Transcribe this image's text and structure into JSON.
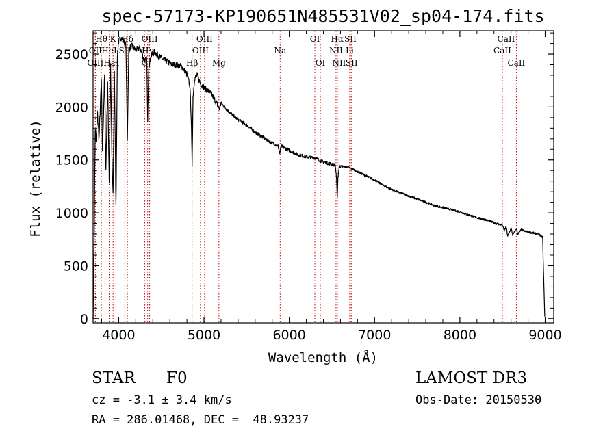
{
  "chart_data": {
    "type": "line",
    "title": "spec-57173-KP190651N485531V02_sp04-174.fits",
    "xlabel": "Wavelength (Å)",
    "ylabel": "Flux (relative)",
    "xlim": [
      3700,
      9100
    ],
    "ylim": [
      -40,
      2720
    ],
    "xticks": [
      4000,
      5000,
      6000,
      7000,
      8000,
      9000
    ],
    "xtick_labels": [
      "4000",
      "5000",
      "6000",
      "7000",
      "8000",
      "9000"
    ],
    "yticks": [
      0,
      500,
      1000,
      1500,
      2000,
      2500
    ],
    "ytick_labels": [
      "0",
      "500",
      "1000",
      "1500",
      "2000",
      "2500"
    ],
    "series": [
      {
        "name": "spectrum",
        "x": [
          3700,
          3712,
          3725,
          3738,
          3750,
          3770,
          3797,
          3810,
          3835,
          3850,
          3870,
          3889,
          3905,
          3920,
          3934,
          3950,
          3968,
          3985,
          4000,
          4030,
          4060,
          4085,
          4102,
          4118,
          4150,
          4200,
          4250,
          4300,
          4330,
          4340,
          4352,
          4380,
          4420,
          4470,
          4520,
          4570,
          4620,
          4680,
          4740,
          4800,
          4835,
          4850,
          4861,
          4872,
          4890,
          4920,
          4960,
          5020,
          5080,
          5140,
          5180,
          5200,
          5240,
          5300,
          5400,
          5500,
          5600,
          5700,
          5800,
          5870,
          5889,
          5896,
          5910,
          6000,
          6100,
          6200,
          6300,
          6400,
          6500,
          6540,
          6555,
          6563,
          6570,
          6585,
          6620,
          6700,
          6800,
          6900,
          7000,
          7100,
          7200,
          7300,
          7400,
          7500,
          7600,
          7700,
          7800,
          7900,
          8000,
          8100,
          8200,
          8300,
          8400,
          8498,
          8520,
          8542,
          8560,
          8600,
          8620,
          8662,
          8680,
          8720,
          8760,
          8800,
          8860,
          8920,
          8970,
          8985,
          8995
        ],
        "y": [
          0,
          700,
          1800,
          1650,
          1950,
          1700,
          2250,
          1600,
          2300,
          1400,
          2250,
          1300,
          2400,
          1550,
          1150,
          2350,
          1050,
          2500,
          2620,
          2660,
          2620,
          2580,
          1700,
          2540,
          2580,
          2540,
          2560,
          2440,
          2450,
          1850,
          2380,
          2480,
          2520,
          2480,
          2450,
          2430,
          2400,
          2400,
          2380,
          2310,
          2200,
          1900,
          1450,
          2100,
          2270,
          2300,
          2220,
          2170,
          2130,
          2050,
          1980,
          2040,
          2000,
          1950,
          1880,
          1830,
          1760,
          1710,
          1660,
          1630,
          1560,
          1600,
          1630,
          1590,
          1550,
          1530,
          1520,
          1480,
          1460,
          1450,
          1300,
          1150,
          1330,
          1440,
          1440,
          1430,
          1390,
          1350,
          1310,
          1260,
          1220,
          1190,
          1160,
          1130,
          1100,
          1070,
          1050,
          1030,
          1010,
          980,
          955,
          935,
          905,
          885,
          830,
          870,
          780,
          855,
          790,
          850,
          800,
          840,
          825,
          820,
          810,
          800,
          770,
          300,
          20
        ]
      }
    ],
    "lines": [
      {
        "label": "Hθ",
        "x": 3797,
        "row": 1
      },
      {
        "label": "OII",
        "x": 3727,
        "row": 2
      },
      {
        "label": "OIII",
        "x": 3727,
        "row": 3
      },
      {
        "label": "Hε",
        "x": 3889,
        "row": 3
      },
      {
        "label": "HeI",
        "x": 3889,
        "row": 2
      },
      {
        "label": "K",
        "x": 3934,
        "row": 1
      },
      {
        "label": "H",
        "x": 3968,
        "row": 3
      },
      {
        "label": "Hδ",
        "x": 4102,
        "row": 1
      },
      {
        "label": "SII",
        "x": 4072,
        "row": 2
      },
      {
        "label": "OIII",
        "x": 4363,
        "row": 1
      },
      {
        "label": "Hγ",
        "x": 4340,
        "row": 2
      },
      {
        "label": "G",
        "x": 4305,
        "row": 3
      },
      {
        "label": "Hβ",
        "x": 4861,
        "row": 3
      },
      {
        "label": "OIII",
        "x": 5007,
        "row": 1
      },
      {
        "label": "OIII",
        "x": 4959,
        "row": 2
      },
      {
        "label": "Mg",
        "x": 5175,
        "row": 3
      },
      {
        "label": "Na",
        "x": 5893,
        "row": 2
      },
      {
        "label": "OI",
        "x": 6300,
        "row": 1
      },
      {
        "label": "OI",
        "x": 6364,
        "row": 3
      },
      {
        "label": "Hα",
        "x": 6563,
        "row": 1
      },
      {
        "label": "SII",
        "x": 6717,
        "row": 1
      },
      {
        "label": "NII",
        "x": 6548,
        "row": 2
      },
      {
        "label": "Li",
        "x": 6708,
        "row": 2
      },
      {
        "label": "NII",
        "x": 6584,
        "row": 3
      },
      {
        "label": "SII",
        "x": 6731,
        "row": 3
      },
      {
        "label": "CaII",
        "x": 8542,
        "row": 1
      },
      {
        "label": "CaII",
        "x": 8498,
        "row": 2
      },
      {
        "label": "CaII",
        "x": 8662,
        "row": 3
      }
    ],
    "grid": false,
    "legend": "none",
    "line_color": "#000000",
    "marker_color": "#c00000"
  },
  "info": {
    "object_class": "STAR",
    "subclass": "F0",
    "survey": "LAMOST DR3",
    "redshift": "cz = -3.1 ± 3.4 km/s",
    "obs_date": "Obs-Date: 20150530",
    "coords": "RA = 286.01468, DEC =  48.93237"
  }
}
